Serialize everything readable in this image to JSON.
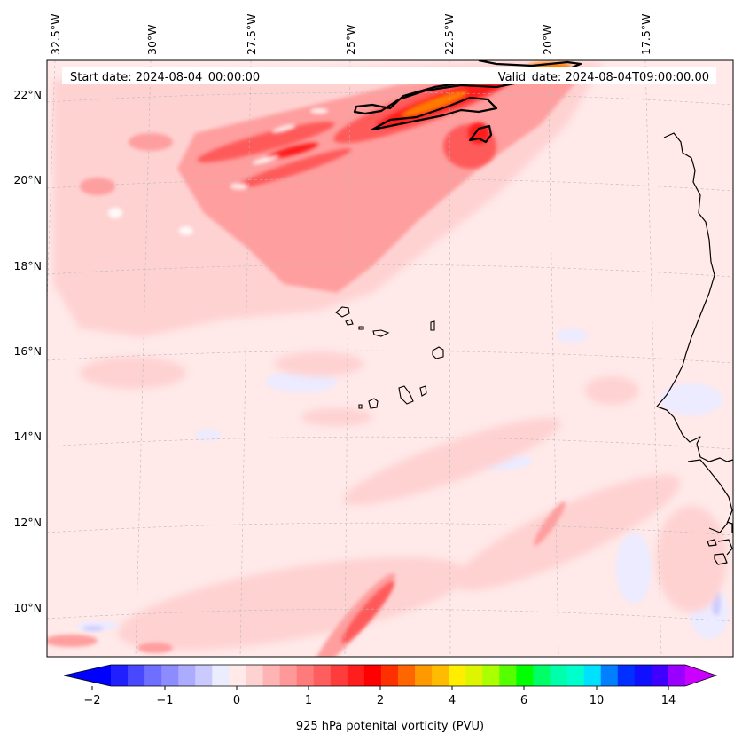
{
  "header": {
    "start_date": "Start date: 2024-08-04_00:00:00",
    "valid_date": "Valid_date: 2024-08-04T09:00:00.00"
  },
  "map": {
    "lon_labels": [
      "32.5°W",
      "30°W",
      "27.5°W",
      "25°W",
      "22.5°W",
      "20°W",
      "17.5°W"
    ],
    "lat_labels": [
      "22°N",
      "20°N",
      "18°N",
      "16°N",
      "14°N",
      "12°N",
      "10°N"
    ],
    "background_color": "#ffe9e9"
  },
  "colorbar": {
    "label": "925 hPa potenital vorticity (PVU)",
    "tick_labels": [
      "−2",
      "−1",
      "0",
      "1",
      "2",
      "4",
      "6",
      "10",
      "14"
    ],
    "under_color": "#0000ff",
    "over_color": "#cc00ff",
    "colors": [
      "#2020ff",
      "#4848ff",
      "#6e6eff",
      "#8c8cff",
      "#acacff",
      "#cacaff",
      "#ececff",
      "#ffe9e9",
      "#ffd2d2",
      "#ffb4b4",
      "#ff9999",
      "#ff7a7a",
      "#ff5e5e",
      "#ff3c3c",
      "#ff1e1e",
      "#ff0000",
      "#ff3000",
      "#ff6600",
      "#ff9900",
      "#ffbb00",
      "#ffee00",
      "#ddf500",
      "#aaff00",
      "#55ff00",
      "#00ff00",
      "#00ff66",
      "#00ffaa",
      "#00ffcc",
      "#00e0ff",
      "#0080ff",
      "#0030ff",
      "#1010ff",
      "#4000ff",
      "#9900ff"
    ]
  }
}
